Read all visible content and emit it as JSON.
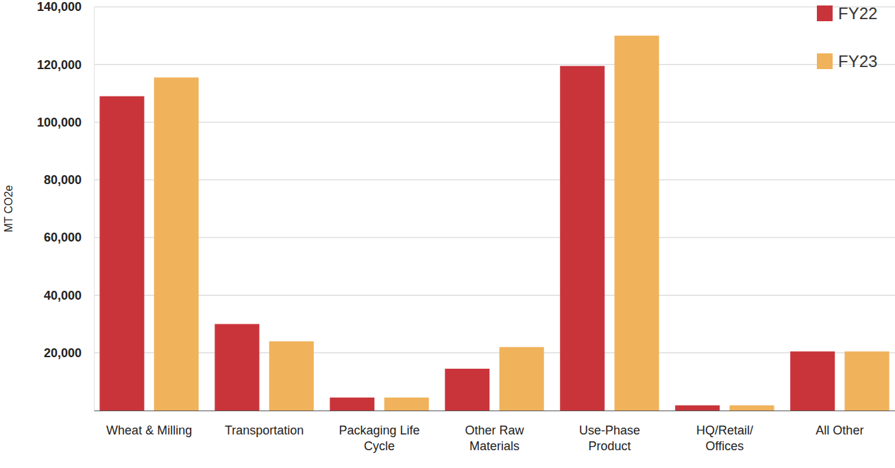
{
  "chart_data": {
    "type": "bar",
    "y_label": "MT CO2e",
    "categories": [
      "Wheat & Milling",
      "Transportation",
      "Packaging Life\nCycle",
      "Other Raw\nMaterials",
      "Use-Phase\nProduct",
      "HQ/Retail/\nOffices",
      "All Other"
    ],
    "series": [
      {
        "name": "FY22",
        "color": "#c9343a",
        "values": [
          109000,
          30000,
          4500,
          14500,
          119500,
          1800,
          20500
        ]
      },
      {
        "name": "FY23",
        "color": "#f0b25a",
        "values": [
          115500,
          24000,
          4500,
          22000,
          130000,
          1800,
          20500
        ]
      }
    ],
    "ylim": [
      0,
      140000
    ],
    "yticks": [
      {
        "value": 20000,
        "label": "20,000"
      },
      {
        "value": 40000,
        "label": "40,000"
      },
      {
        "value": 60000,
        "label": "60,000"
      },
      {
        "value": 80000,
        "label": "80,000"
      },
      {
        "value": 100000,
        "label": "100,000"
      },
      {
        "value": 120000,
        "label": "120,000"
      },
      {
        "value": 140000,
        "label": "140,000"
      }
    ],
    "grid": true,
    "legend": "top-right"
  }
}
